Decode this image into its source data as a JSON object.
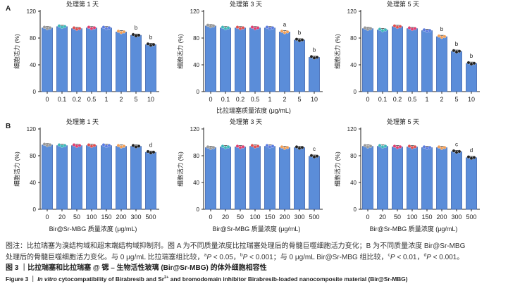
{
  "panels": [
    {
      "label": "A",
      "xlabel": "比拉瑞塞质量浓度 (μg/mL)"
    },
    {
      "label": "B",
      "xlabel": "Bir@Sr-MBG 质量浓度 (μg/mL)"
    }
  ],
  "colors": {
    "bar_fill": "#5b8dd9",
    "bar_stroke": "#3e66b0",
    "axis": "#222222",
    "error": "#222222"
  },
  "chart_data": [
    {
      "panel": "A",
      "type": "bar",
      "title": "处理第 1 天",
      "ylabel": "细胞活力 (%)",
      "ylim": [
        0,
        120
      ],
      "yticks": [
        0,
        40,
        80,
        120
      ],
      "categories": [
        "0",
        "0.1",
        "0.2",
        "0.5",
        "1",
        "2",
        "5",
        "10"
      ],
      "values": [
        95,
        97,
        94,
        95,
        95,
        89,
        84,
        70
      ],
      "significance": [
        {
          "category": "5",
          "label": "b"
        },
        {
          "category": "10",
          "label": "b"
        }
      ],
      "point_colors": [
        "#9a9a9a",
        "#3fb8b8",
        "#e05050",
        "#e04070",
        "#5b7be0",
        "#f2a058",
        "#222222",
        "#222222"
      ]
    },
    {
      "panel": "A",
      "type": "bar",
      "title": "处理第 3 天",
      "ylabel": "细胞活力 (%)",
      "ylim": [
        0,
        120
      ],
      "yticks": [
        0,
        40,
        80,
        120
      ],
      "categories": [
        "0",
        "0.1",
        "0.2",
        "0.5",
        "1",
        "2",
        "5",
        "10"
      ],
      "values": [
        98,
        95,
        95,
        95,
        95,
        89,
        77,
        51
      ],
      "significance": [
        {
          "category": "2",
          "label": "a"
        },
        {
          "category": "5",
          "label": "b"
        },
        {
          "category": "10",
          "label": "b"
        }
      ],
      "point_colors": [
        "#9a9a9a",
        "#3fb8b8",
        "#e05050",
        "#e04070",
        "#5b7be0",
        "#f2a058",
        "#222222",
        "#222222"
      ]
    },
    {
      "panel": "A",
      "type": "bar",
      "title": "处理第 5 天",
      "ylabel": "细胞活力 (%)",
      "ylim": [
        0,
        120
      ],
      "yticks": [
        0,
        40,
        80,
        120
      ],
      "categories": [
        "0",
        "0.1",
        "0.2",
        "0.5",
        "1",
        "2",
        "5",
        "10"
      ],
      "values": [
        94,
        92,
        97,
        94,
        91,
        82,
        60,
        42
      ],
      "significance": [
        {
          "category": "2",
          "label": "b"
        },
        {
          "category": "5",
          "label": "b"
        },
        {
          "category": "10",
          "label": "b"
        }
      ],
      "point_colors": [
        "#9a9a9a",
        "#3fb8b8",
        "#e05050",
        "#e04070",
        "#5b7be0",
        "#f2a058",
        "#222222",
        "#222222"
      ]
    },
    {
      "panel": "B",
      "type": "bar",
      "title": "处理第 1 天",
      "ylabel": "细胞活力 (%)",
      "ylim": [
        0,
        120
      ],
      "yticks": [
        0,
        40,
        80,
        120
      ],
      "categories": [
        "0",
        "20",
        "50",
        "100",
        "150",
        "200",
        "300",
        "500"
      ],
      "values": [
        96,
        95,
        95,
        95,
        95,
        94,
        94,
        85
      ],
      "significance": [
        {
          "category": "500",
          "label": "d"
        }
      ],
      "point_colors": [
        "#9a9a9a",
        "#3fb8b8",
        "#e04070",
        "#e05050",
        "#5b7be0",
        "#f2a058",
        "#222222",
        "#222222"
      ]
    },
    {
      "panel": "B",
      "type": "bar",
      "title": "处理第 3 天",
      "ylabel": "细胞活力 (%)",
      "ylim": [
        0,
        120
      ],
      "yticks": [
        0,
        40,
        80,
        120
      ],
      "categories": [
        "0",
        "20",
        "50",
        "100",
        "150",
        "200",
        "300",
        "500"
      ],
      "values": [
        92,
        93,
        93,
        94,
        94,
        92,
        92,
        79
      ],
      "significance": [
        {
          "category": "500",
          "label": "c"
        }
      ],
      "point_colors": [
        "#9a9a9a",
        "#3fb8b8",
        "#e04070",
        "#e05050",
        "#5b7be0",
        "#f2a058",
        "#222222",
        "#222222"
      ]
    },
    {
      "panel": "B",
      "type": "bar",
      "title": "处理第 5 天",
      "ylabel": "细胞活力 (%)",
      "ylim": [
        0,
        120
      ],
      "yticks": [
        0,
        40,
        80,
        120
      ],
      "categories": [
        "0",
        "20",
        "50",
        "100",
        "150",
        "200",
        "300",
        "500"
      ],
      "values": [
        94,
        94,
        93,
        93,
        92,
        92,
        86,
        77
      ],
      "significance": [
        {
          "category": "300",
          "label": "c"
        },
        {
          "category": "500",
          "label": "d"
        }
      ],
      "point_colors": [
        "#9a9a9a",
        "#3fb8b8",
        "#e04070",
        "#e05050",
        "#5b7be0",
        "#f2a058",
        "#222222",
        "#222222"
      ]
    }
  ],
  "caption": {
    "line1": "图注：比拉瑞塞为溴结构域和超末端结构域抑制剂。图 A 为不同质量浓度比拉瑞塞处理后的骨髓巨噬细胞活力变化；B 为不同质量浓度 Bir@Sr-MBG",
    "line2": [
      {
        "t": "处理后的骨髓巨噬细胞活力变化。与 0 μg/mL 比拉瑞塞组比较，"
      },
      {
        "t": "a",
        "s": "sup"
      },
      {
        "t": "P",
        "s": "i"
      },
      {
        "t": " < 0.05，"
      },
      {
        "t": "b",
        "s": "sup"
      },
      {
        "t": "P",
        "s": "i"
      },
      {
        "t": " < 0.001；与 0 μg/mL Bir@Sr-MBG 组比较，"
      },
      {
        "t": "c",
        "s": "sup"
      },
      {
        "t": "P",
        "s": "i"
      },
      {
        "t": " < 0.01，"
      },
      {
        "t": "d",
        "s": "sup"
      },
      {
        "t": "P",
        "s": "i"
      },
      {
        "t": " < 0.001。"
      }
    ],
    "line3": "图 3 ｜比拉瑞塞和比拉瑞塞 @ 锶 – 生物活性玻璃 (Bir@Sr-MBG) 的体外细胞相容性",
    "line4": [
      {
        "t": "Figure 3 ｜ "
      },
      {
        "t": "In vitro",
        "s": "i"
      },
      {
        "t": " cytocompatibility of Birabresib and Sr"
      },
      {
        "t": "2+",
        "s": "sup"
      },
      {
        "t": " and bromodomain inhibitor Birabresib-loaded nanocomposite material (Bir@Sr-MBG)"
      }
    ]
  }
}
